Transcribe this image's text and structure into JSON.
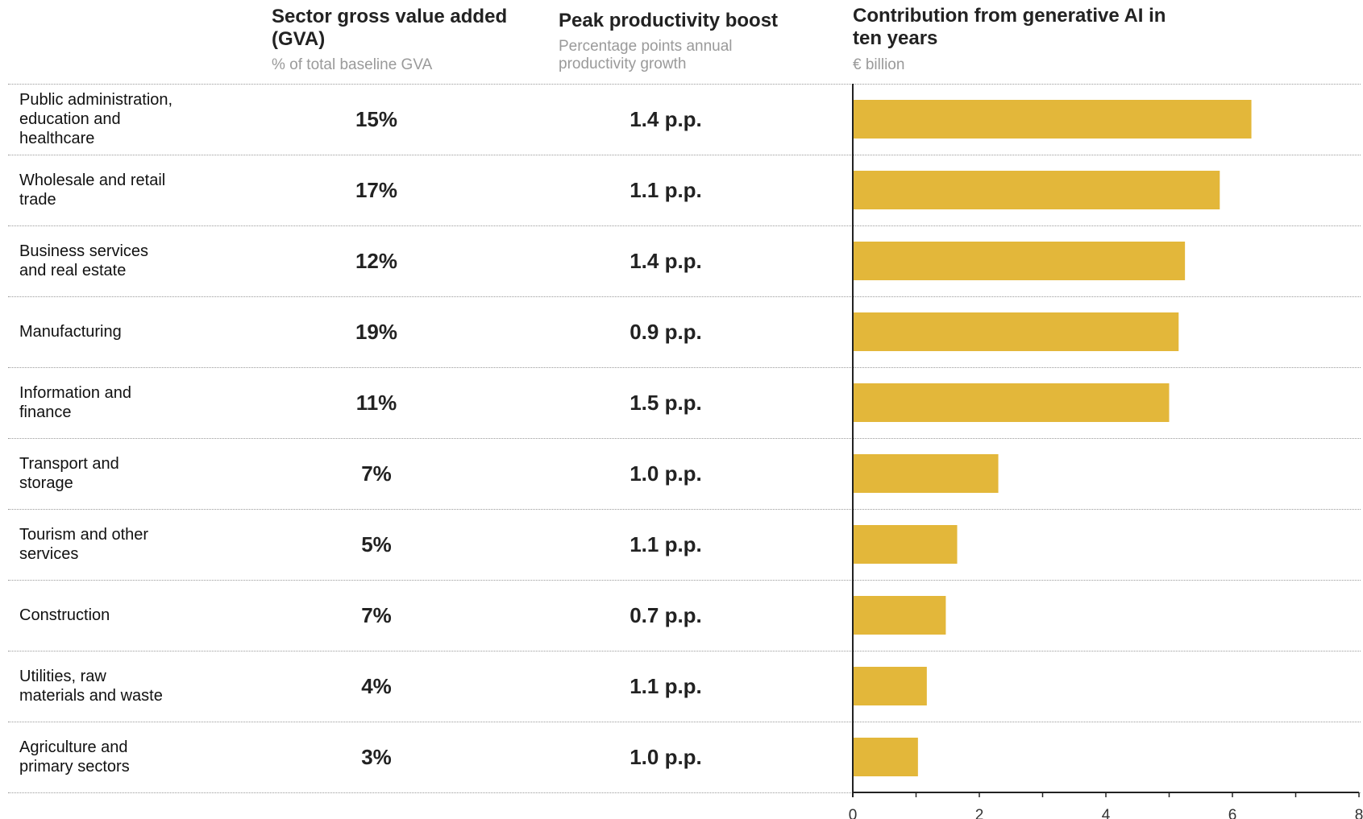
{
  "headers": {
    "gva": {
      "title": "Sector gross value added (GVA)",
      "subtitle": "% of total baseline GVA"
    },
    "boost": {
      "title": "Peak productivity boost",
      "subtitle": "Percentage points annual productivity growth"
    },
    "contribution": {
      "title": "Contribution from generative AI in ten years",
      "subtitle": "€ billion"
    }
  },
  "colors": {
    "bar": "#E3B73A",
    "axis": "#222222",
    "separator": "#9A9A9A"
  },
  "rows": [
    {
      "label": "Public administration,\neducation and\nhealthcare",
      "gva": "15%",
      "boost": "1.4 p.p."
    },
    {
      "label": "Wholesale and retail\ntrade",
      "gva": "17%",
      "boost": "1.1 p.p."
    },
    {
      "label": "Business services\nand real estate",
      "gva": "12%",
      "boost": "1.4 p.p."
    },
    {
      "label": "Manufacturing",
      "gva": "19%",
      "boost": "0.9 p.p."
    },
    {
      "label": "Information and\nfinance",
      "gva": "11%",
      "boost": "1.5 p.p."
    },
    {
      "label": "Transport and\nstorage",
      "gva": "7%",
      "boost": "1.0 p.p."
    },
    {
      "label": "Tourism and other\nservices",
      "gva": "5%",
      "boost": "1.1 p.p."
    },
    {
      "label": "Construction",
      "gva": "7%",
      "boost": "0.7 p.p."
    },
    {
      "label": "Utilities, raw\nmaterials and waste",
      "gva": "4%",
      "boost": "1.1 p.p."
    },
    {
      "label": "Agriculture and\nprimary sectors",
      "gva": "3%",
      "boost": "1.0 p.p."
    }
  ],
  "chart_data": {
    "type": "bar",
    "orientation": "horizontal",
    "title": "Contribution from generative AI in ten years",
    "unit": "€ billion",
    "categories": [
      "Public administration, education and healthcare",
      "Wholesale and retail trade",
      "Business services and real estate",
      "Manufacturing",
      "Information and finance",
      "Transport and storage",
      "Tourism and other services",
      "Construction",
      "Utilities, raw materials and waste",
      "Agriculture and primary sectors"
    ],
    "values": [
      6.3,
      5.8,
      5.25,
      5.15,
      5.0,
      2.3,
      1.65,
      1.47,
      1.17,
      1.03
    ],
    "xlim": [
      0,
      8
    ],
    "xticks": [
      0,
      2,
      4,
      6,
      8
    ],
    "grid": false
  }
}
